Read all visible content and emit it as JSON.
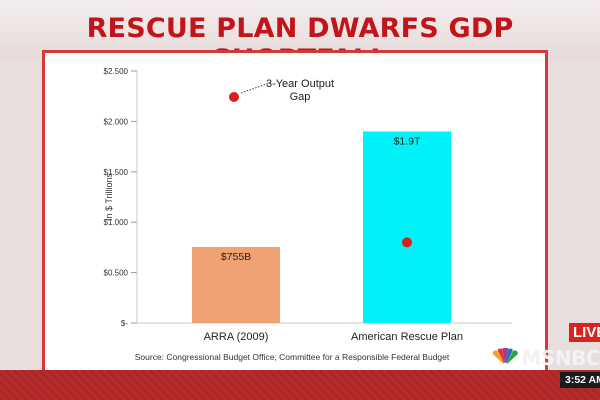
{
  "headline": "RESCUE PLAN DWARFS GDP SHORTFALL",
  "source": "Source: Congressional Budget Office; Committee for a Responsible Federal Budget",
  "broadcast": {
    "live_label": "LIVE",
    "network": "MSNBC",
    "time": "3:52 AM"
  },
  "colors": {
    "headline": "#c2151b",
    "arra_bar": "#f0a272",
    "rescue_bar": "#00f2f8",
    "marker": "#d81e1e",
    "panel_border": "#d43a3a"
  },
  "chart_data": {
    "type": "bar",
    "ylabel": "In $ Trillions",
    "ylim": [
      0,
      2.5
    ],
    "yticks": [
      {
        "value": 0,
        "label": "$-"
      },
      {
        "value": 0.5,
        "label": "$0.500"
      },
      {
        "value": 1.0,
        "label": "$1.000"
      },
      {
        "value": 1.5,
        "label": "$1.500"
      },
      {
        "value": 2.0,
        "label": "$2.000"
      },
      {
        "value": 2.5,
        "label": "$2.500"
      }
    ],
    "categories": [
      "ARRA (2009)",
      "American Rescue Plan"
    ],
    "values": [
      0.755,
      1.9
    ],
    "data_labels": [
      "$755B",
      "$1.9T"
    ],
    "output_gap": {
      "label": "3-Year Output Gap",
      "value": 0.8,
      "category": "American Rescue Plan"
    },
    "legend": {
      "label": "3-Year Output Gap"
    }
  }
}
